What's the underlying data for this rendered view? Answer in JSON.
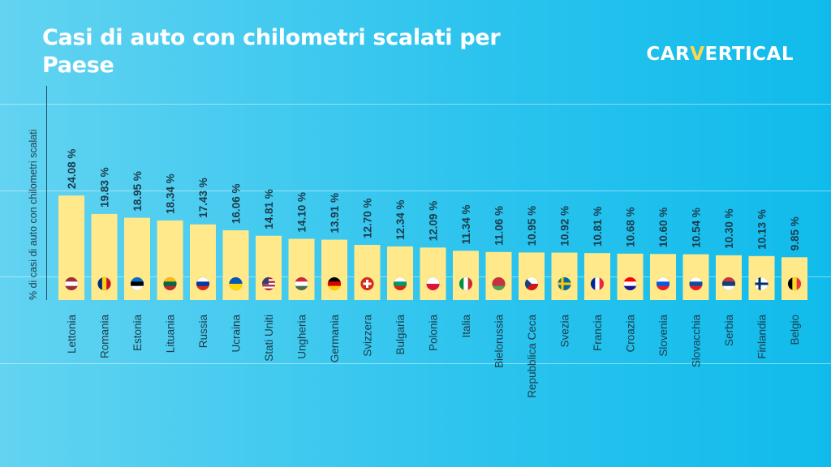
{
  "header": {
    "title": "Casi di auto con chilometri scalati per Paese",
    "logo_left": "CAR",
    "logo_v": "V",
    "logo_right": "ERTICAL"
  },
  "colors": {
    "background": "#2ec4ee",
    "bar": "#ffe98a",
    "text": "#1b3b4a",
    "title": "#ffffff",
    "logo_accent": "#ffd84a"
  },
  "chart_data": {
    "type": "bar",
    "ylabel": "% di casi di auto con chilometri scalati",
    "xlabel": "",
    "ylim": [
      0,
      25
    ],
    "grid": false,
    "categories": [
      "Lettonia",
      "Romania",
      "Estonia",
      "Lituania",
      "Russia",
      "Ucraina",
      "Stati Uniti",
      "Ungheria",
      "Germania",
      "Svizzera",
      "Bulgaria",
      "Polonia",
      "Italia",
      "Bielorussia",
      "Repubblica Ceca",
      "Svezia",
      "Francia",
      "Croazia",
      "Slovenia",
      "Slovacchia",
      "Serbia",
      "Finlandia",
      "Belgio"
    ],
    "values": [
      24.08,
      19.83,
      18.95,
      18.34,
      17.43,
      16.06,
      14.81,
      14.1,
      13.91,
      12.7,
      12.34,
      12.09,
      11.34,
      11.06,
      10.95,
      10.92,
      10.81,
      10.68,
      10.6,
      10.54,
      10.3,
      10.13,
      9.85
    ],
    "data_labels": [
      "24.08 %",
      "19.83 %",
      "18.95 %",
      "18.34 %",
      "17.43 %",
      "16.06 %",
      "14.81 %",
      "14.10 %",
      "13.91 %",
      "12.70 %",
      "12.34 %",
      "12.09 %",
      "11.34 %",
      "11.06 %",
      "10.95 %",
      "10.92 %",
      "10.81 %",
      "10.68 %",
      "10.60 %",
      "10.54 %",
      "10.30 %",
      "10.13 %",
      "9.85 %"
    ],
    "flags": [
      {
        "name": "latvia-flag-icon",
        "type": "h",
        "colors": [
          "#9e3039",
          "#ffffff",
          "#9e3039"
        ]
      },
      {
        "name": "romania-flag-icon",
        "type": "v",
        "colors": [
          "#002b7f",
          "#fcd116",
          "#ce1126"
        ]
      },
      {
        "name": "estonia-flag-icon",
        "type": "h",
        "colors": [
          "#0072ce",
          "#000000",
          "#ffffff"
        ]
      },
      {
        "name": "lithuania-flag-icon",
        "type": "h",
        "colors": [
          "#fdb913",
          "#006a44",
          "#c1272d"
        ]
      },
      {
        "name": "russia-flag-icon",
        "type": "h",
        "colors": [
          "#ffffff",
          "#0039a6",
          "#d52b1e"
        ]
      },
      {
        "name": "ukraine-flag-icon",
        "type": "h",
        "colors": [
          "#0057b7",
          "#ffd700"
        ]
      },
      {
        "name": "usa-flag-icon",
        "type": "us",
        "colors": [
          "#b22234",
          "#ffffff",
          "#3c3b6e"
        ]
      },
      {
        "name": "hungary-flag-icon",
        "type": "h",
        "colors": [
          "#ce2939",
          "#ffffff",
          "#477050"
        ]
      },
      {
        "name": "germany-flag-icon",
        "type": "h",
        "colors": [
          "#000000",
          "#dd0000",
          "#ffce00"
        ]
      },
      {
        "name": "switzerland-flag-icon",
        "type": "cross",
        "colors": [
          "#d52b1e",
          "#ffffff"
        ]
      },
      {
        "name": "bulgaria-flag-icon",
        "type": "h",
        "colors": [
          "#ffffff",
          "#00966e",
          "#d62612"
        ]
      },
      {
        "name": "poland-flag-icon",
        "type": "h",
        "colors": [
          "#ffffff",
          "#dc143c"
        ]
      },
      {
        "name": "italy-flag-icon",
        "type": "v",
        "colors": [
          "#009246",
          "#ffffff",
          "#ce2b37"
        ]
      },
      {
        "name": "belarus-flag-icon",
        "type": "h",
        "colors": [
          "#c8313e",
          "#c8313e",
          "#4aa657"
        ]
      },
      {
        "name": "czech-flag-icon",
        "type": "cz",
        "colors": [
          "#ffffff",
          "#d7141a",
          "#11457e"
        ]
      },
      {
        "name": "sweden-flag-icon",
        "type": "nordic",
        "colors": [
          "#006aa7",
          "#fecc00"
        ]
      },
      {
        "name": "france-flag-icon",
        "type": "v",
        "colors": [
          "#002395",
          "#ffffff",
          "#ed2939"
        ]
      },
      {
        "name": "croatia-flag-icon",
        "type": "h",
        "colors": [
          "#ff0000",
          "#ffffff",
          "#171796"
        ]
      },
      {
        "name": "slovenia-flag-icon",
        "type": "h",
        "colors": [
          "#ffffff",
          "#005ce5",
          "#ed1c24"
        ]
      },
      {
        "name": "slovakia-flag-icon",
        "type": "h",
        "colors": [
          "#ffffff",
          "#0b4ea2",
          "#ee1c25"
        ]
      },
      {
        "name": "serbia-flag-icon",
        "type": "h",
        "colors": [
          "#c6363c",
          "#0c4076",
          "#ffffff"
        ]
      },
      {
        "name": "finland-flag-icon",
        "type": "nordic",
        "colors": [
          "#ffffff",
          "#002f6c"
        ]
      },
      {
        "name": "belgium-flag-icon",
        "type": "v",
        "colors": [
          "#000000",
          "#fdda24",
          "#ef3340"
        ]
      }
    ]
  }
}
